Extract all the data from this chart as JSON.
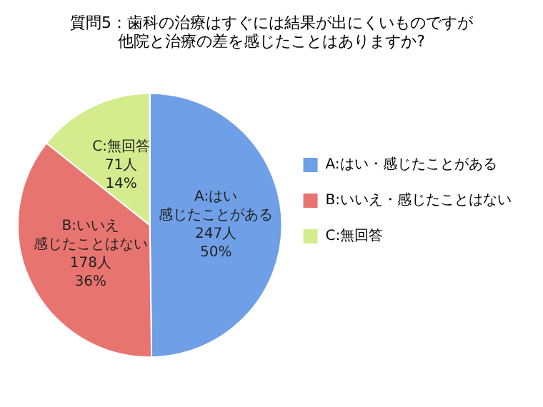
{
  "chart_data": {
    "type": "pie",
    "title": "質問5：歯科の治療はすぐには結果が出にくいものですが他院と治療の差を感じたことはありますか?",
    "categories": [
      "A:はい・感じたことがある",
      "B:いいえ・感じたことはない",
      "C:無回答"
    ],
    "values": [
      247,
      178,
      71
    ],
    "colors": [
      "#6f9fe6",
      "#e87470",
      "#d4ec8e"
    ],
    "value_labels": [
      "A:はい感じたことがある\n247人\n50%",
      "B:いいえ感じたことはない\n178人\n36%",
      "C:無回答\n71人\n14%"
    ],
    "legend": "right"
  }
}
